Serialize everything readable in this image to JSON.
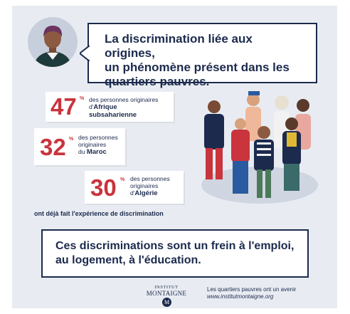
{
  "headline": {
    "line1": "La discrimination liée aux origines,",
    "line2": "un phénomène présent dans les",
    "line3": "quartiers pauvres."
  },
  "stats": [
    {
      "value": "47",
      "unit": "%",
      "line1": "des personnes originaires",
      "line2": "d'",
      "region_line1": "Afrique",
      "region_line2": "subsaharienne"
    },
    {
      "value": "32",
      "unit": "%",
      "line1": "des personnes",
      "line2": "originaires",
      "prefix": "du ",
      "region": "Maroc"
    },
    {
      "value": "30",
      "unit": "%",
      "line1": "des personnes",
      "line2": "originaires",
      "prefix": "d'",
      "region": "Algérie"
    }
  ],
  "caption": "ont déjà fait l'expérience de discrimination",
  "message": {
    "line1": "Ces discriminations sont un frein à l'emploi,",
    "line2": "au logement, à l'éducation."
  },
  "footer": {
    "logo_line1": "INSTITUT",
    "logo_line2": "MONTAIGNE",
    "logo_mark": "M",
    "tagline": "Les quartiers pauvres ont un avenir",
    "url": "www.institutmontaigne.org"
  },
  "colors": {
    "background": "#e8ecf2",
    "navy": "#1c2a4d",
    "accent_red": "#c9343d"
  }
}
